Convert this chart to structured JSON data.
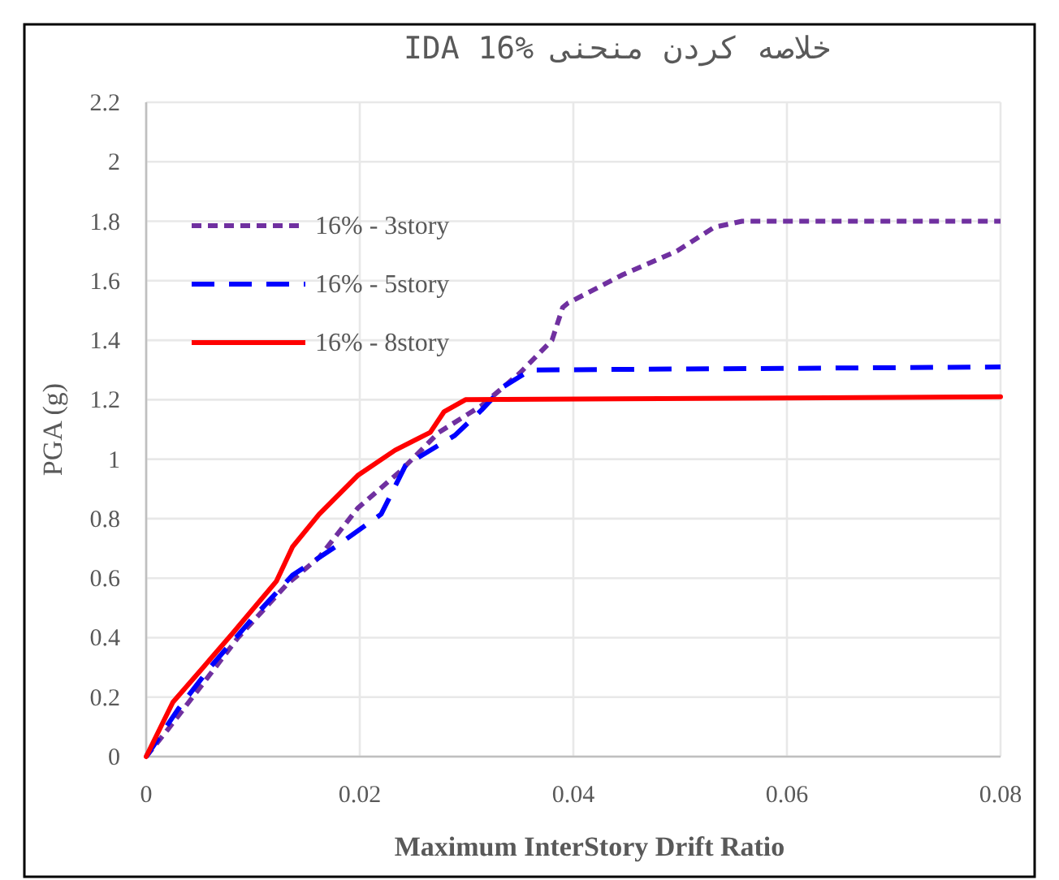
{
  "chart_data": {
    "type": "line",
    "title": "خلاصه کردن منحنی IDA 16%",
    "xlabel": "Maximum InterStory Drift Ratio",
    "ylabel": "PGA (g)",
    "xlim": [
      0,
      0.08
    ],
    "xticks": [
      0,
      0.02,
      0.04,
      0.06,
      0.08
    ],
    "ylim": [
      0,
      2.2
    ],
    "yticks": [
      0,
      0.2,
      0.4,
      0.6,
      0.8,
      1,
      1.2,
      1.4,
      1.6,
      1.8,
      2,
      2.2
    ],
    "grid": true,
    "legend": "top left",
    "marker": "none",
    "series": [
      {
        "name": "16% - 3story",
        "color": "#7030a0",
        "line_style": "dotted",
        "x": [
          0,
          0.002,
          0.0051,
          0.0086,
          0.0132,
          0.0162,
          0.0198,
          0.0238,
          0.0274,
          0.0314,
          0.035,
          0.038,
          0.039,
          0.0395,
          0.0446,
          0.0497,
          0.0532,
          0.0558,
          0.08
        ],
        "values": [
          0,
          0.09,
          0.235,
          0.4,
          0.58,
          0.67,
          0.835,
          0.96,
          1.09,
          1.18,
          1.29,
          1.4,
          1.51,
          1.525,
          1.62,
          1.7,
          1.78,
          1.8,
          1.8
        ]
      },
      {
        "name": "16% - 5story",
        "color": "#0000ff",
        "line_style": "dashed",
        "x": [
          0,
          0.003,
          0.0061,
          0.0096,
          0.0137,
          0.0177,
          0.022,
          0.0243,
          0.0289,
          0.0314,
          0.0335,
          0.036,
          0.08
        ],
        "values": [
          0,
          0.16,
          0.305,
          0.45,
          0.61,
          0.705,
          0.815,
          0.98,
          1.08,
          1.165,
          1.245,
          1.3,
          1.31
        ]
      },
      {
        "name": "16% - 8story",
        "color": "#ff0000",
        "line_style": "solid",
        "x": [
          0,
          0.0025,
          0.0051,
          0.0081,
          0.0122,
          0.0137,
          0.0162,
          0.0198,
          0.0233,
          0.0266,
          0.0279,
          0.0299,
          0.08
        ],
        "values": [
          0,
          0.183,
          0.29,
          0.415,
          0.59,
          0.705,
          0.815,
          0.945,
          1.03,
          1.09,
          1.16,
          1.2,
          1.21
        ]
      }
    ]
  }
}
